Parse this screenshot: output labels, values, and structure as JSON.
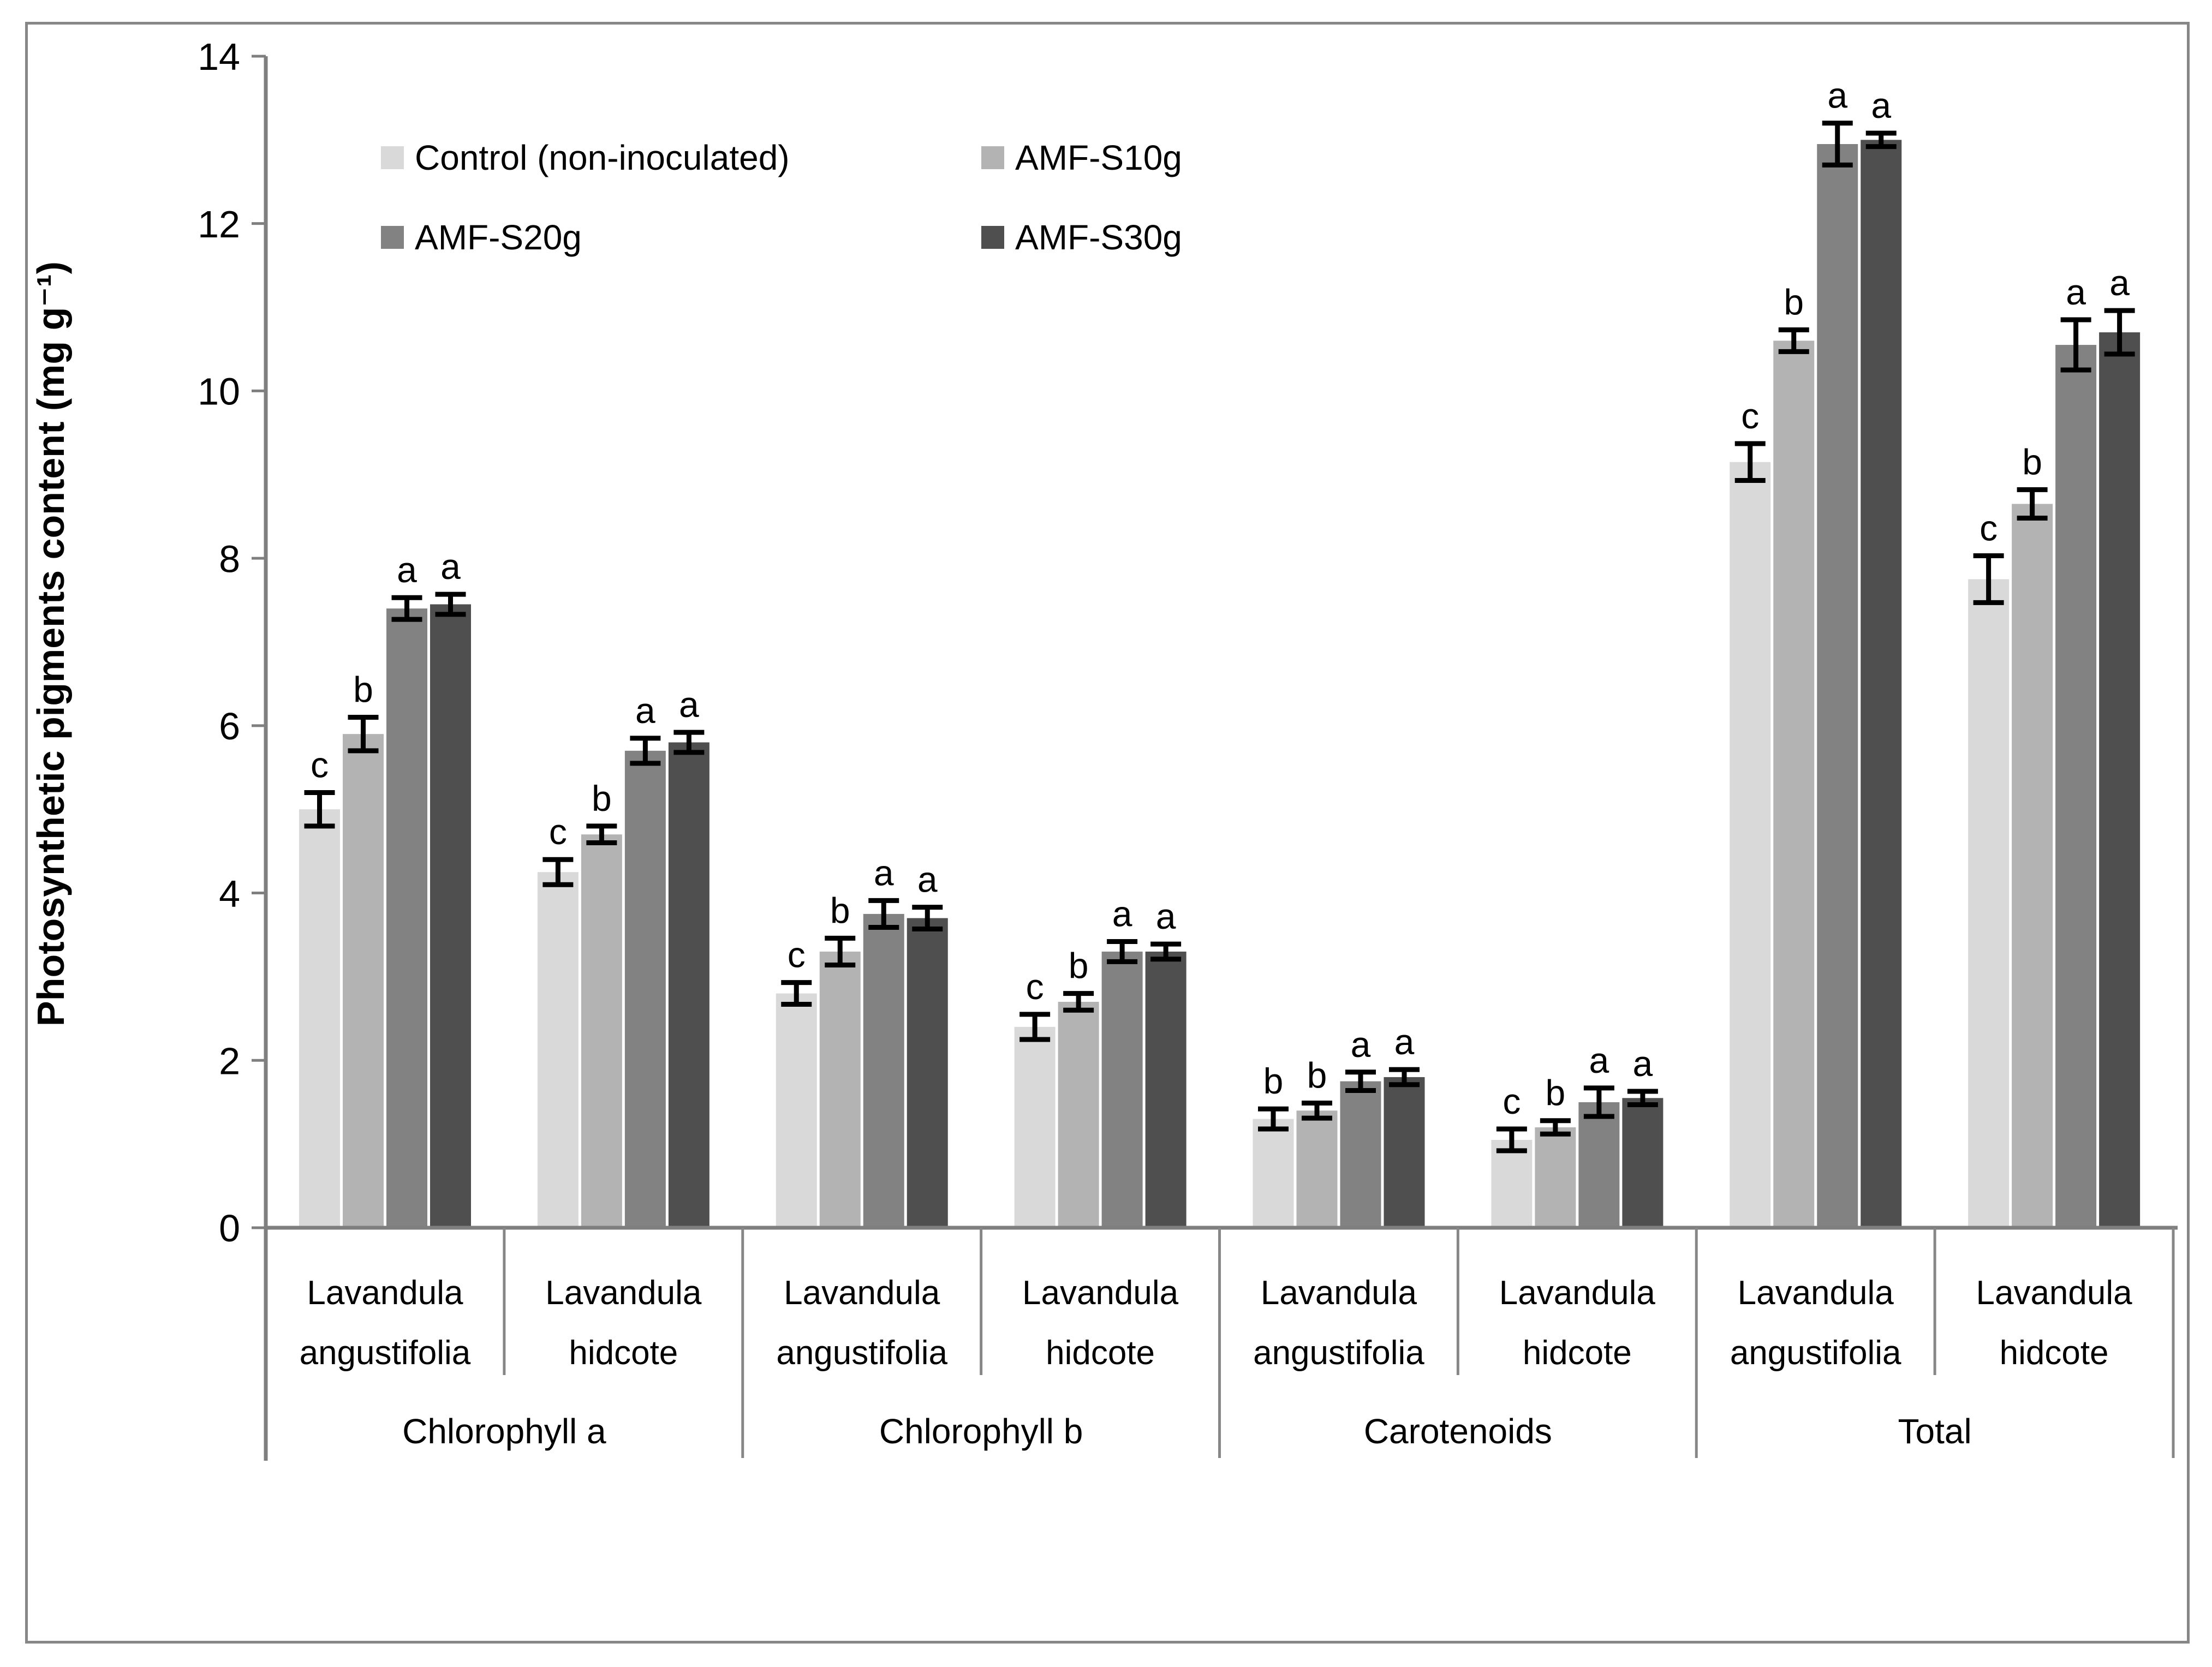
{
  "figure": {
    "background": "#ffffff",
    "border_color": "#878787",
    "axis_color": "#7f7f7f",
    "table_line_color": "#878787",
    "text_color": "#000000"
  },
  "chart_data": {
    "type": "bar",
    "title": "",
    "xlabel": "",
    "ylabel": "Photosynthetic pigments content (mg g⁻¹)",
    "ylim": [
      0,
      14
    ],
    "yticks": [
      0,
      2,
      4,
      6,
      8,
      10,
      12,
      14
    ],
    "grid": "off",
    "legend_position": "top-left, two columns, inside plot",
    "error_bars": "on, black, capped",
    "significance_letters_note": "letters a/b/c shown above error bars",
    "group_labels": [
      "Chlorophyll a",
      "Chlorophyll b",
      "Carotenoids",
      "Total"
    ],
    "categories": [
      {
        "group": "Chlorophyll a",
        "species_lines": [
          "Lavandula",
          "angustifolia"
        ]
      },
      {
        "group": "Chlorophyll a",
        "species_lines": [
          "Lavandula",
          "hidcote"
        ]
      },
      {
        "group": "Chlorophyll b",
        "species_lines": [
          "Lavandula",
          "angustifolia"
        ]
      },
      {
        "group": "Chlorophyll b",
        "species_lines": [
          "Lavandula",
          "hidcote"
        ]
      },
      {
        "group": "Carotenoids",
        "species_lines": [
          "Lavandula",
          "angustifolia"
        ]
      },
      {
        "group": "Carotenoids",
        "species_lines": [
          "Lavandula",
          "hidcote"
        ]
      },
      {
        "group": "Total",
        "species_lines": [
          "Lavandula",
          "angustifolia"
        ]
      },
      {
        "group": "Total",
        "species_lines": [
          "Lavandula",
          "hidcote"
        ]
      }
    ],
    "series": [
      {
        "name": "Control (non-inoculated)",
        "color": "#d9d9d9",
        "values": [
          5.0,
          4.25,
          2.8,
          2.4,
          1.3,
          1.05,
          9.15,
          7.75
        ],
        "errors": [
          0.2,
          0.15,
          0.13,
          0.15,
          0.12,
          0.13,
          0.22,
          0.28
        ],
        "letters": [
          "c",
          "c",
          "c",
          "c",
          "b",
          "c",
          "c",
          "c"
        ]
      },
      {
        "name": "AMF-S10g",
        "color": "#b3b3b3",
        "values": [
          5.9,
          4.7,
          3.3,
          2.7,
          1.4,
          1.2,
          10.6,
          8.65
        ],
        "errors": [
          0.2,
          0.1,
          0.16,
          0.1,
          0.09,
          0.08,
          0.13,
          0.17
        ],
        "letters": [
          "b",
          "b",
          "b",
          "b",
          "b",
          "b",
          "b",
          "b"
        ]
      },
      {
        "name": "AMF-S20g",
        "color": "#828282",
        "values": [
          7.4,
          5.7,
          3.75,
          3.3,
          1.75,
          1.5,
          12.95,
          10.55
        ],
        "errors": [
          0.13,
          0.15,
          0.16,
          0.12,
          0.11,
          0.17,
          0.25,
          0.3
        ],
        "letters": [
          "a",
          "a",
          "a",
          "a",
          "a",
          "a",
          "a",
          "a"
        ]
      },
      {
        "name": "AMF-S30g",
        "color": "#4f4f4f",
        "values": [
          7.45,
          5.8,
          3.7,
          3.3,
          1.8,
          1.55,
          13.0,
          10.7
        ],
        "errors": [
          0.12,
          0.12,
          0.13,
          0.09,
          0.09,
          0.08,
          0.08,
          0.26
        ],
        "letters": [
          "a",
          "a",
          "a",
          "a",
          "a",
          "a",
          "a",
          "a"
        ]
      }
    ]
  }
}
